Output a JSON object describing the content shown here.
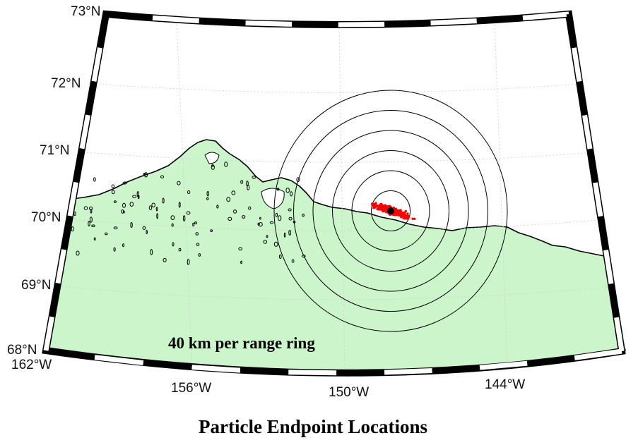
{
  "title": "Particle Endpoint Locations",
  "annotation": "40 km per range ring",
  "lat_labels": [
    "73°N",
    "72°N",
    "71°N",
    "70°N",
    "69°N",
    "68°N"
  ],
  "lon_labels": [
    "162°W",
    "156°W",
    "150°W",
    "144°W"
  ],
  "colors": {
    "land": "#ccf5cc",
    "ocean": "#ffffff",
    "particles": "#ff0000",
    "center": "#000000",
    "rings": "#000000"
  },
  "range_rings": {
    "count": 6,
    "spacing_km": 40,
    "center": {
      "lat": 70.4,
      "lon": -149.0
    }
  },
  "extent": {
    "lat": [
      68,
      73
    ],
    "lon": [
      -162,
      -140
    ]
  },
  "particles_count": 340
}
